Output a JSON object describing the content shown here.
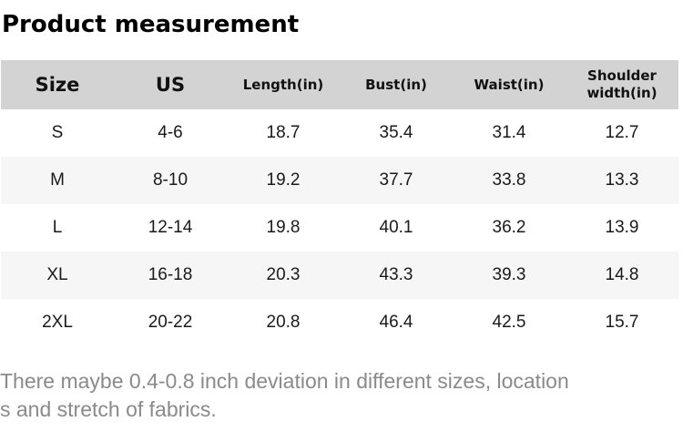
{
  "title": "Product measurement",
  "colors": {
    "header_bg": "#d3d3d3",
    "row_alt_bg": "#f6f6f6",
    "body_text": "#1a1a1a",
    "note_text": "#8a8a8a"
  },
  "table": {
    "headers": [
      "Size",
      "US",
      "Length(in)",
      "Bust(in)",
      "Waist(in)",
      "Shoulder width(in)"
    ],
    "rows": [
      [
        "S",
        "4-6",
        "18.7",
        "35.4",
        "31.4",
        "12.7"
      ],
      [
        "M",
        "8-10",
        "19.2",
        "37.7",
        "33.8",
        "13.3"
      ],
      [
        "L",
        "12-14",
        "19.8",
        "40.1",
        "36.2",
        "13.9"
      ],
      [
        "XL",
        "16-18",
        "20.3",
        "43.3",
        "39.3",
        "14.8"
      ],
      [
        "2XL",
        "20-22",
        "20.8",
        "46.4",
        "42.5",
        "15.7"
      ]
    ]
  },
  "note": {
    "full_text": "There maybe 0.4-0.8 inch deviation in different sizes, locations and stretch of fabrics.",
    "lines": [
      "There maybe 0.4-0.8 inch deviation in different sizes, location",
      "s and stretch of fabrics."
    ]
  }
}
